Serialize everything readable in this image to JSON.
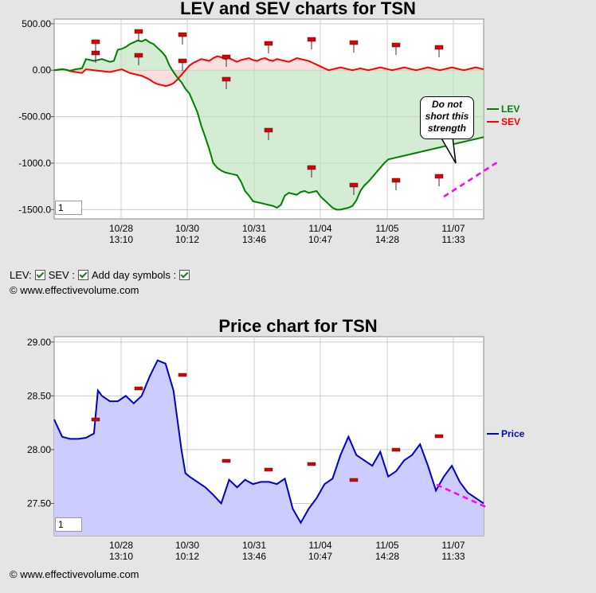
{
  "chart_data": [
    {
      "type": "line",
      "title": "LEV and SEV charts for TSN",
      "ylim": [
        -1600,
        550
      ],
      "yticks": [
        500,
        0,
        -500,
        -1000,
        -1500
      ],
      "ytick_labels": [
        "500.00",
        "0.00",
        "-500.00",
        "-1000.0",
        "-1500.0"
      ],
      "xtick_labels": [
        [
          "10/28",
          "13:10"
        ],
        [
          "10/30",
          "10:12"
        ],
        [
          "10/31",
          "13:46"
        ],
        [
          "11/04",
          "10:47"
        ],
        [
          "11/05",
          "14:28"
        ],
        [
          "11/07",
          "11:33"
        ]
      ],
      "x": [
        0,
        10,
        15,
        20,
        27,
        35,
        40,
        50,
        60,
        70,
        75,
        80,
        85,
        90,
        95,
        100,
        105,
        110,
        115,
        120,
        125,
        130,
        135,
        140,
        145,
        150,
        155,
        160,
        165,
        170,
        175,
        180,
        185,
        190,
        195,
        200,
        205,
        210,
        215,
        220,
        225,
        230,
        235,
        240,
        245,
        250,
        255,
        260,
        265,
        270,
        275,
        280,
        285,
        290,
        295,
        300,
        305,
        310,
        315,
        320,
        325,
        330,
        335,
        340,
        345,
        350,
        355,
        360,
        365,
        370,
        375,
        380,
        385,
        390,
        395,
        400,
        405,
        410,
        415,
        420,
        425,
        430,
        435,
        440,
        445,
        450,
        455,
        460,
        465,
        470,
        475,
        480,
        485,
        490,
        495,
        500,
        505,
        510,
        515,
        520,
        525,
        530,
        535,
        540
      ],
      "series": [
        {
          "name": "LEV",
          "color": "#008000",
          "values": [
            0,
            10,
            5,
            -5,
            10,
            20,
            120,
            100,
            120,
            90,
            100,
            220,
            230,
            250,
            280,
            300,
            320,
            310,
            330,
            300,
            280,
            240,
            200,
            150,
            50,
            -20,
            -80,
            -130,
            -200,
            -250,
            -350,
            -450,
            -600,
            -720,
            -850,
            -1000,
            -1050,
            -1080,
            -1100,
            -1110,
            -1120,
            -1130,
            -1200,
            -1300,
            -1350,
            -1410,
            -1420,
            -1430,
            -1440,
            -1450,
            -1460,
            -1480,
            -1450,
            -1350,
            -1320,
            -1330,
            -1340,
            -1310,
            -1300,
            -1320,
            -1310,
            -1300,
            -1360,
            -1400,
            -1440,
            -1480,
            -1500,
            -1500,
            -1490,
            -1480,
            -1460,
            -1400,
            -1300,
            -1240,
            -1200,
            -1150,
            -1100,
            -1050,
            -1000,
            -960,
            -950,
            -940,
            -930,
            -920,
            -910,
            -900,
            -890,
            -880,
            -870,
            -860,
            -850,
            -840,
            -830,
            -820,
            -810,
            -800,
            -790,
            -780,
            -770,
            -760,
            -750,
            -740,
            -730,
            -720
          ]
        },
        {
          "name": "SEV",
          "color": "#ff0000",
          "values": [
            0,
            10,
            5,
            -10,
            -20,
            -30,
            10,
            0,
            -10,
            -20,
            -10,
            0,
            10,
            -10,
            -30,
            -40,
            -50,
            -60,
            -80,
            -100,
            -130,
            -150,
            -160,
            -170,
            -160,
            -140,
            -100,
            -50,
            0,
            50,
            80,
            100,
            120,
            110,
            100,
            130,
            150,
            140,
            120,
            130,
            110,
            90,
            110,
            120,
            130,
            110,
            100,
            120,
            130,
            110,
            100,
            120,
            110,
            100,
            90,
            110,
            130,
            120,
            110,
            100,
            80,
            60,
            40,
            20,
            0,
            10,
            20,
            30,
            20,
            10,
            0,
            10,
            20,
            10,
            0,
            10,
            20,
            30,
            20,
            10,
            0,
            10,
            20,
            30,
            20,
            10,
            0,
            10,
            20,
            30,
            20,
            10,
            0,
            10,
            20,
            30,
            20,
            10,
            0,
            10,
            20,
            30,
            20,
            10
          ]
        }
      ],
      "legend": "right"
    },
    {
      "type": "area",
      "title": "Price chart for TSN",
      "ylim": [
        27.2,
        29.05
      ],
      "yticks": [
        29.0,
        28.5,
        28.0,
        27.5
      ],
      "ytick_labels": [
        "29.00",
        "28.50",
        "28.00",
        "27.50"
      ],
      "xtick_labels": [
        [
          "10/28",
          "13:10"
        ],
        [
          "10/30",
          "10:12"
        ],
        [
          "10/31",
          "13:46"
        ],
        [
          "11/04",
          "10:47"
        ],
        [
          "11/05",
          "14:28"
        ],
        [
          "11/07",
          "11:33"
        ]
      ],
      "x": [
        0,
        10,
        20,
        30,
        40,
        50,
        55,
        60,
        70,
        80,
        90,
        100,
        110,
        120,
        130,
        140,
        150,
        160,
        165,
        170,
        180,
        190,
        200,
        210,
        220,
        230,
        240,
        250,
        260,
        270,
        280,
        290,
        300,
        310,
        320,
        330,
        340,
        350,
        360,
        370,
        380,
        390,
        400,
        410,
        420,
        430,
        440,
        450,
        460,
        470,
        480,
        490,
        500,
        510,
        520,
        530,
        540
      ],
      "series": [
        {
          "name": "Price",
          "color": "#0000cc",
          "values": [
            28.28,
            28.12,
            28.1,
            28.1,
            28.11,
            28.15,
            28.55,
            28.5,
            28.45,
            28.45,
            28.5,
            28.43,
            28.5,
            28.68,
            28.83,
            28.8,
            28.55,
            28.0,
            27.78,
            27.75,
            27.7,
            27.65,
            27.58,
            27.5,
            27.72,
            27.65,
            27.72,
            27.68,
            27.7,
            27.7,
            27.68,
            27.73,
            27.45,
            27.32,
            27.45,
            27.55,
            27.68,
            27.73,
            27.95,
            28.12,
            27.95,
            27.9,
            27.85,
            27.98,
            27.75,
            27.8,
            27.9,
            27.95,
            28.05,
            27.85,
            27.62,
            27.75,
            27.85,
            27.7,
            27.6,
            27.55,
            27.5
          ]
        }
      ],
      "legend": "right"
    }
  ],
  "ui": {
    "title_lev": "LEV and SEV charts for TSN",
    "title_price": "Price chart for TSN",
    "legend_lev": "LEV",
    "legend_sev": "SEV",
    "legend_price": "Price",
    "ctrl_lev": "LEV:",
    "ctrl_sev": "SEV :",
    "ctrl_day": "Add day symbols :",
    "copyright": "© www.effectivevolume.com",
    "zoom_value": "1",
    "callout_text": "Do not short this strength"
  },
  "colors": {
    "lev": "#008000",
    "sev": "#ff0000",
    "price": "#0000cc",
    "price_fill": "#ccccff",
    "trend": "#ff00ff"
  }
}
